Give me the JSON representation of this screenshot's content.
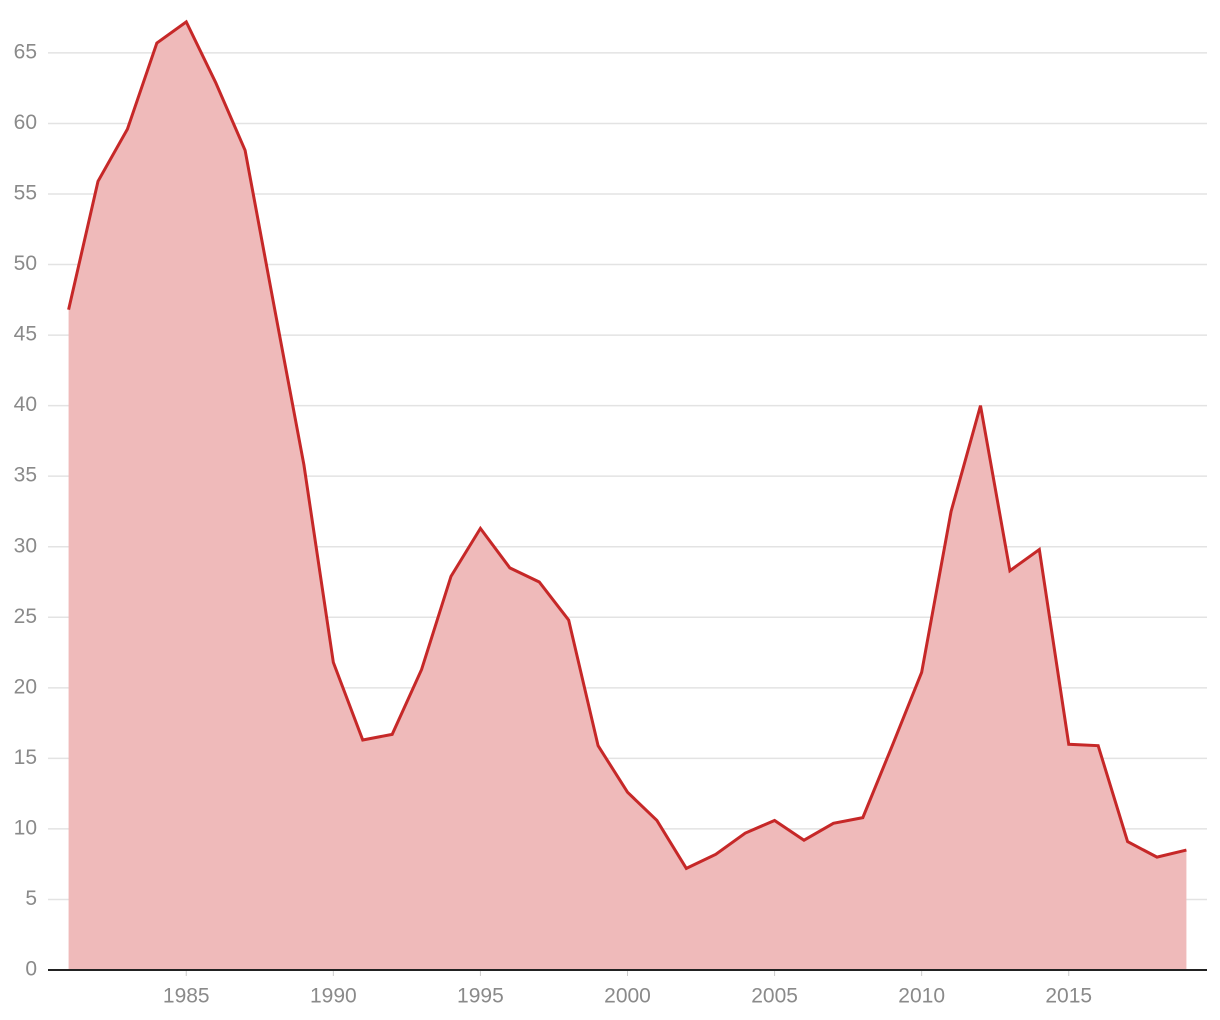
{
  "chart_data": {
    "type": "area",
    "x": [
      1981,
      1982,
      1983,
      1984,
      1985,
      1986,
      1987,
      1988,
      1989,
      1990,
      1991,
      1992,
      1993,
      1994,
      1995,
      1996,
      1997,
      1998,
      1999,
      2000,
      2001,
      2002,
      2003,
      2004,
      2005,
      2006,
      2007,
      2008,
      2009,
      2010,
      2011,
      2012,
      2013,
      2014,
      2015,
      2016,
      2017,
      2018,
      2019
    ],
    "values": [
      46.8,
      55.9,
      59.6,
      65.7,
      67.2,
      62.9,
      58.1,
      46.9,
      35.8,
      21.8,
      16.3,
      16.7,
      21.3,
      27.9,
      31.3,
      28.5,
      27.5,
      24.8,
      15.9,
      12.6,
      10.6,
      7.2,
      8.2,
      9.7,
      10.6,
      9.2,
      10.4,
      10.8,
      15.9,
      21.1,
      32.5,
      40.0,
      28.3,
      29.8,
      16.0,
      15.9,
      9.1,
      8.0,
      8.5
    ],
    "color": "#c62828",
    "fill_color": "#efbaba",
    "xlim": [
      1980.3,
      2019.7
    ],
    "xticks": [
      1985,
      1990,
      1995,
      2000,
      2005,
      2010,
      2015
    ],
    "ylim": [
      0,
      68.75
    ],
    "yticks": [
      0,
      5,
      10,
      15,
      20,
      25,
      30,
      35,
      40,
      45,
      50,
      55,
      60,
      65
    ],
    "grid": true
  }
}
